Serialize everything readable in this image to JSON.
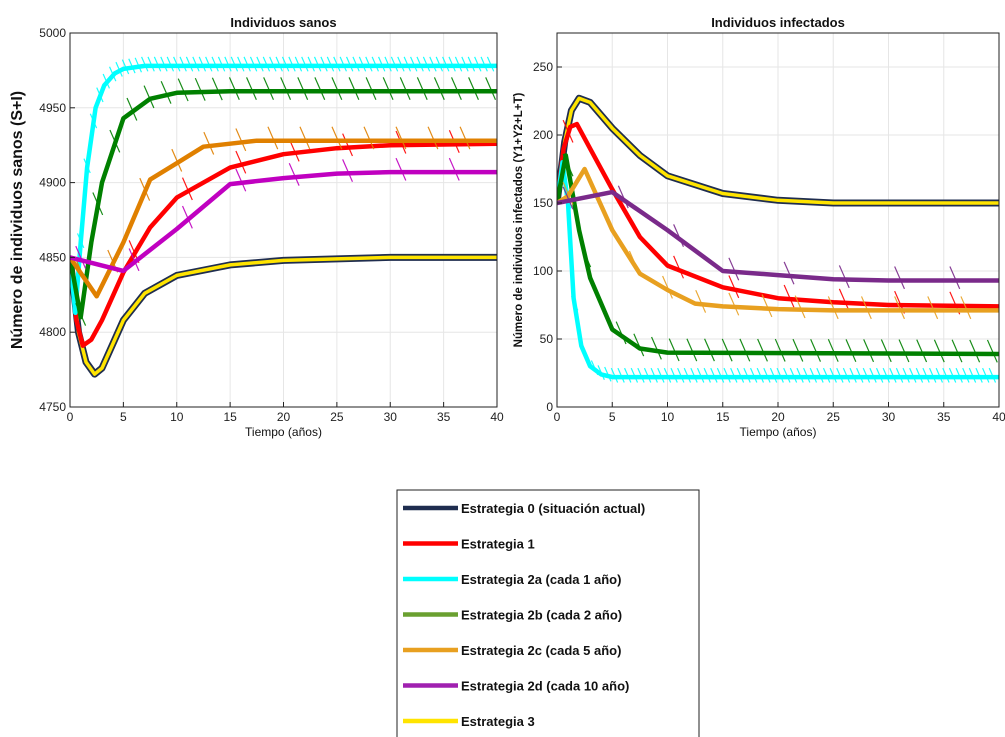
{
  "chart_data": [
    {
      "type": "line",
      "title": "Individuos sanos",
      "xlabel": "Tiempo (años)",
      "ylabel": "Número de individuos sanos (S+I)",
      "xlim": [
        0,
        40
      ],
      "ylim": [
        4750,
        5000
      ],
      "xticks": [
        0,
        5,
        10,
        15,
        20,
        25,
        30,
        35,
        40
      ],
      "yticks": [
        4750,
        4800,
        4850,
        4900,
        4950,
        5000
      ],
      "grid": true,
      "series": [
        {
          "name": "Estrategia 0 (situación actual)",
          "color": "#1f2d4f",
          "points": [
            [
              0,
              4850
            ],
            [
              0.8,
              4800
            ],
            [
              1.5,
              4780
            ],
            [
              2.3,
              4772
            ],
            [
              3,
              4776
            ],
            [
              4,
              4792
            ],
            [
              5,
              4808
            ],
            [
              7,
              4826
            ],
            [
              10,
              4838
            ],
            [
              15,
              4845
            ],
            [
              20,
              4848
            ],
            [
              25,
              4849
            ],
            [
              30,
              4850
            ],
            [
              40,
              4850
            ]
          ]
        },
        {
          "name": "Estrategia 1",
          "color": "#ff0000",
          "points": [
            [
              0,
              4850
            ],
            [
              0.6,
              4808
            ],
            [
              1.2,
              4791
            ],
            [
              2,
              4795
            ],
            [
              3,
              4808
            ],
            [
              5,
              4840
            ],
            [
              7.5,
              4870
            ],
            [
              10,
              4890
            ],
            [
              15,
              4910
            ],
            [
              20,
              4919
            ],
            [
              25,
              4923
            ],
            [
              30,
              4925
            ],
            [
              40,
              4926
            ]
          ]
        },
        {
          "name": "Estrategia 2a (cada 1 año)",
          "color": "#00ffff",
          "points": [
            [
              0,
              4850
            ],
            [
              0.5,
              4813
            ],
            [
              1,
              4860
            ],
            [
              1.6,
              4910
            ],
            [
              2.4,
              4950
            ],
            [
              3.2,
              4965
            ],
            [
              4.2,
              4973
            ],
            [
              5,
              4976
            ],
            [
              7,
              4978
            ],
            [
              40,
              4978
            ]
          ]
        },
        {
          "name": "Estrategia 2b (cada 2 año)",
          "color": "#008000",
          "points": [
            [
              0,
              4850
            ],
            [
              1,
              4810
            ],
            [
              2,
              4860
            ],
            [
              3,
              4900
            ],
            [
              5,
              4943
            ],
            [
              7.5,
              4956
            ],
            [
              10,
              4960
            ],
            [
              15,
              4961
            ],
            [
              40,
              4961
            ]
          ]
        },
        {
          "name": "Estrategia 2c (cada 5 año)",
          "color": "#e08000",
          "points": [
            [
              0,
              4850
            ],
            [
              2.5,
              4824
            ],
            [
              5,
              4860
            ],
            [
              7.5,
              4902
            ],
            [
              10,
              4913
            ],
            [
              12.5,
              4924
            ],
            [
              15,
              4926
            ],
            [
              17.5,
              4928
            ],
            [
              40,
              4928
            ]
          ]
        },
        {
          "name": "Estrategia 2d (cada 10 año)",
          "color": "#c000c0",
          "points": [
            [
              0,
              4850
            ],
            [
              5,
              4841
            ],
            [
              10,
              4869
            ],
            [
              15,
              4899
            ],
            [
              20,
              4903
            ],
            [
              25,
              4906
            ],
            [
              30,
              4907
            ],
            [
              40,
              4907
            ]
          ]
        }
      ]
    },
    {
      "type": "line",
      "title": "Individuos infectados",
      "xlabel": "Tiempo (años)",
      "ylabel": "Número de individuos infectados (Y1+Y2+L+T)",
      "xlim": [
        0,
        40
      ],
      "ylim": [
        0,
        275
      ],
      "xticks": [
        0,
        5,
        10,
        15,
        20,
        25,
        30,
        35,
        40
      ],
      "yticks": [
        0,
        50,
        100,
        150,
        200,
        250
      ],
      "grid": true,
      "series": [
        {
          "name": "Estrategia 0 (situación actual)",
          "color": "#1f2d4f",
          "points": [
            [
              0,
              150
            ],
            [
              0.7,
              195
            ],
            [
              1.3,
              218
            ],
            [
              2,
              227
            ],
            [
              3,
              224
            ],
            [
              5,
              205
            ],
            [
              7.5,
              185
            ],
            [
              10,
              170
            ],
            [
              15,
              157
            ],
            [
              20,
              152
            ],
            [
              25,
              150
            ],
            [
              30,
              150
            ],
            [
              40,
              150
            ]
          ]
        },
        {
          "name": "Estrategia 1",
          "color": "#ff0000",
          "points": [
            [
              0,
              150
            ],
            [
              0.6,
              190
            ],
            [
              1.2,
              206
            ],
            [
              1.8,
              208
            ],
            [
              3,
              190
            ],
            [
              5,
              160
            ],
            [
              7.5,
              125
            ],
            [
              10,
              104
            ],
            [
              15,
              88
            ],
            [
              20,
              80
            ],
            [
              25,
              77
            ],
            [
              30,
              75
            ],
            [
              40,
              74
            ]
          ]
        },
        {
          "name": "Estrategia 2a (cada 1 año)",
          "color": "#00ffff",
          "points": [
            [
              0,
              150
            ],
            [
              0.5,
              180
            ],
            [
              1,
              150
            ],
            [
              1.5,
              80
            ],
            [
              2.2,
              45
            ],
            [
              3,
              30
            ],
            [
              4,
              24
            ],
            [
              5,
              22
            ],
            [
              40,
              22
            ]
          ]
        },
        {
          "name": "Estrategia 2b (cada 2 año)",
          "color": "#008000",
          "points": [
            [
              0,
              150
            ],
            [
              0.8,
              185
            ],
            [
              2,
              130
            ],
            [
              3,
              95
            ],
            [
              5,
              57
            ],
            [
              7.5,
              43
            ],
            [
              10,
              40
            ],
            [
              40,
              39
            ]
          ]
        },
        {
          "name": "Estrategia 2c (cada 5 año)",
          "color": "#e8a020",
          "points": [
            [
              0,
              150
            ],
            [
              1,
              155
            ],
            [
              2.5,
              175
            ],
            [
              5,
              130
            ],
            [
              7.5,
              98
            ],
            [
              10,
              86
            ],
            [
              12.5,
              76
            ],
            [
              15,
              74
            ],
            [
              20,
              72
            ],
            [
              25,
              71
            ],
            [
              40,
              71
            ]
          ]
        },
        {
          "name": "Estrategia 2d (cada 10 año)",
          "color": "#7a2a8a",
          "points": [
            [
              0,
              150
            ],
            [
              5,
              158
            ],
            [
              10,
              130
            ],
            [
              15,
              100
            ],
            [
              20,
              97
            ],
            [
              25,
              94
            ],
            [
              30,
              93
            ],
            [
              40,
              93
            ]
          ]
        }
      ]
    }
  ],
  "legend": {
    "placement": "bottom-center",
    "entries": [
      {
        "label": "Estrategia 0 (situación actual)",
        "color": "#1f2d4f"
      },
      {
        "label": "Estrategia 1",
        "color": "#ff0000"
      },
      {
        "label": "Estrategia 2a (cada 1 año)",
        "color": "#00ffff"
      },
      {
        "label": "Estrategia 2b (cada 2 año)",
        "color": "#6aa030"
      },
      {
        "label": "Estrategia 2c (cada 5 año)",
        "color": "#e8a020"
      },
      {
        "label": "Estrategia 2d (cada 10 año)",
        "color": "#a020b0"
      },
      {
        "label": "Estrategia 3",
        "color": "#ffe400"
      }
    ]
  }
}
